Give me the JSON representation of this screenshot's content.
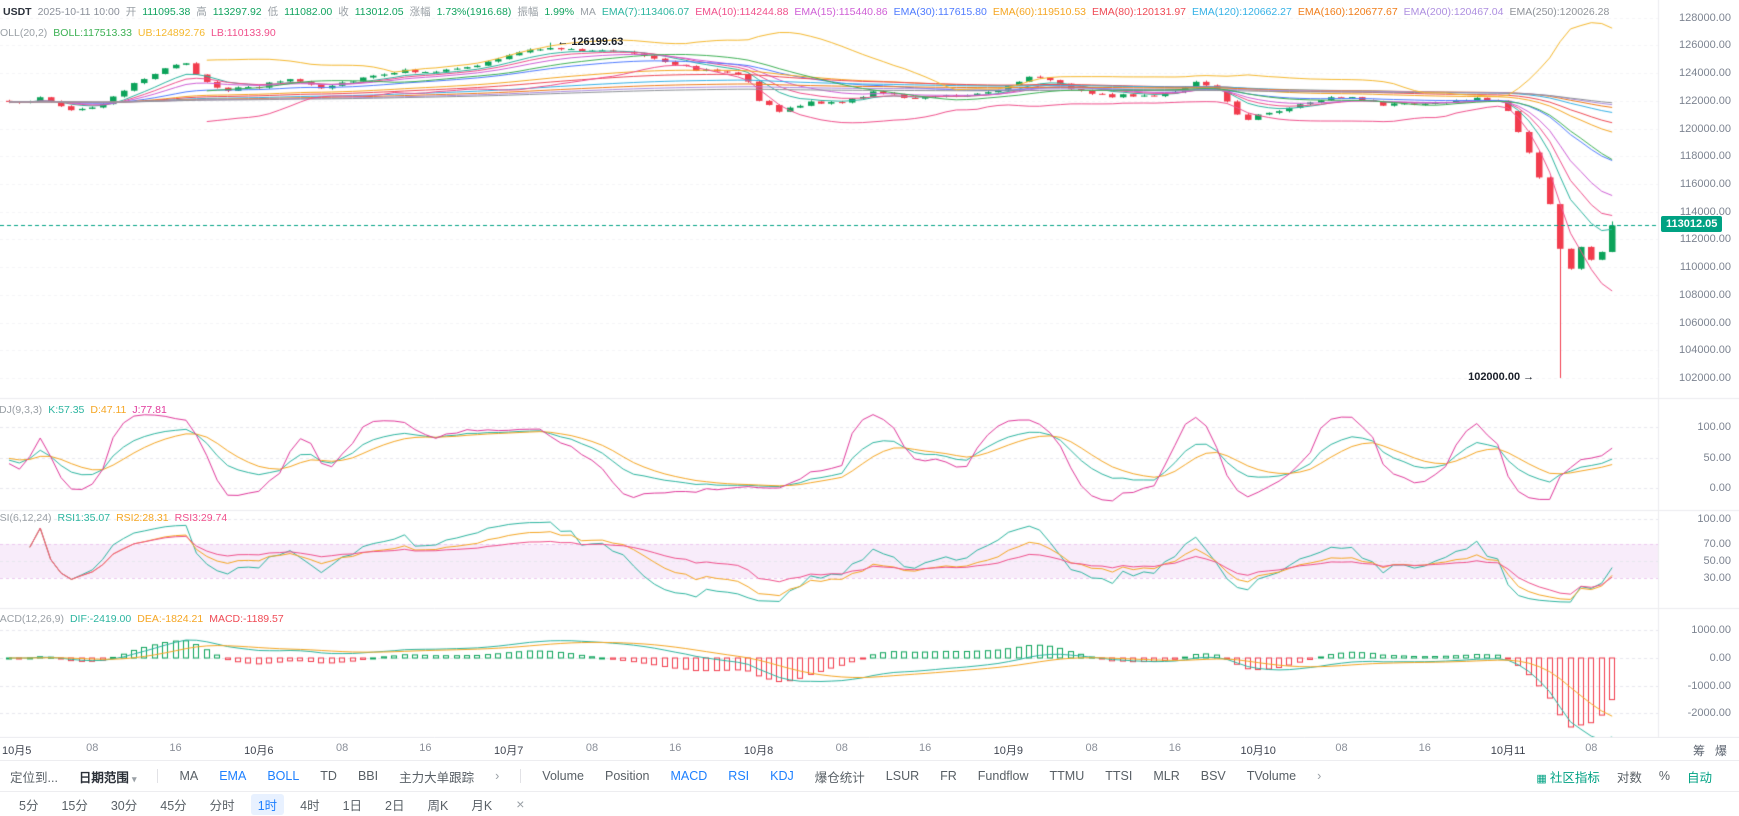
{
  "header": {
    "symbol": "USDT",
    "datetime": "2025-10-11 10:00",
    "label_color": "#9aa0a6",
    "value_color": "#11a35f",
    "fields": [
      {
        "label": "开",
        "value": "111095.38"
      },
      {
        "label": "高",
        "value": "113297.92"
      },
      {
        "label": "低",
        "value": "111082.00"
      },
      {
        "label": "收",
        "value": "113012.05"
      },
      {
        "label": "涨幅",
        "value": "1.73%(1916.68)"
      },
      {
        "label": "振幅",
        "value": "1.99%"
      }
    ]
  },
  "ma_legend": {
    "label": "MA",
    "items": [
      {
        "text": "EMA(7):113406.07",
        "color": "#2cb5a0"
      },
      {
        "text": "EMA(10):114244.88",
        "color": "#f0508c"
      },
      {
        "text": "EMA(15):115440.86",
        "color": "#cf5fd6"
      },
      {
        "text": "EMA(30):117615.80",
        "color": "#4f7bff"
      },
      {
        "text": "EMA(60):119510.53",
        "color": "#f5a623"
      },
      {
        "text": "EMA(80):120131.97",
        "color": "#ef4a55"
      },
      {
        "text": "EMA(120):120662.27",
        "color": "#35b1e6"
      },
      {
        "text": "EMA(160):120677.67",
        "color": "#f07d1a"
      },
      {
        "text": "EMA(200):120467.04",
        "color": "#ae8fe0"
      },
      {
        "text": "EMA(250):120026.28",
        "color": "#8f9399"
      }
    ]
  },
  "boll_legend": {
    "label": "BOLL(20,2)",
    "items": [
      {
        "text": "BOLL:117513.33",
        "color": "#3db154"
      },
      {
        "text": "UB:124892.76",
        "color": "#f5b82e"
      },
      {
        "text": "LB:110133.90",
        "color": "#f0508c"
      }
    ]
  },
  "kdj_legend": {
    "label": "KDJ(9,3,3)",
    "items": [
      {
        "text": "K:57.35",
        "color": "#2cb5a0"
      },
      {
        "text": "D:47.11",
        "color": "#f5a623"
      },
      {
        "text": "J:77.81",
        "color": "#e0389b"
      }
    ]
  },
  "rsi_legend": {
    "label": "RSI(6,12,24)",
    "items": [
      {
        "text": "RSI1:35.07",
        "color": "#2cb5a0"
      },
      {
        "text": "RSI2:28.31",
        "color": "#f5a623"
      },
      {
        "text": "RSI3:29.74",
        "color": "#f0508c"
      }
    ]
  },
  "macd_legend": {
    "label": "MACD(12,26,9)",
    "items": [
      {
        "text": "DIF:-2419.00",
        "color": "#2cb5a0"
      },
      {
        "text": "DEA:-1824.21",
        "color": "#f5a623"
      },
      {
        "text": "MACD:-1189.57",
        "color": "#ef4a55"
      }
    ]
  },
  "annotations": {
    "arrow_left": "←",
    "arrow_right": "→",
    "high": "126199.63",
    "low": "102000.00",
    "price_badge": "113012.05"
  },
  "axes": {
    "main_ticks": [
      "128000.00",
      "126000.00",
      "124000.00",
      "122000.00",
      "120000.00",
      "118000.00",
      "116000.00",
      "114000.00",
      "112000.00",
      "110000.00",
      "108000.00",
      "106000.00",
      "104000.00",
      "102000.00"
    ],
    "kdj_ticks": [
      "100.00",
      "50.00",
      "0.00"
    ],
    "rsi_ticks": [
      "100.00",
      "70.00",
      "50.00",
      "30.00"
    ],
    "macd_ticks": [
      "1000.00",
      "0.00",
      "-1000.00",
      "-2000.00"
    ],
    "x_ticks": [
      {
        "label": "10月5",
        "idx": 0,
        "major": true
      },
      {
        "label": "08",
        "idx": 8
      },
      {
        "label": "16",
        "idx": 16
      },
      {
        "label": "10月6",
        "idx": 24,
        "major": true
      },
      {
        "label": "08",
        "idx": 32
      },
      {
        "label": "16",
        "idx": 40
      },
      {
        "label": "10月7",
        "idx": 48,
        "major": true
      },
      {
        "label": "08",
        "idx": 56
      },
      {
        "label": "16",
        "idx": 64
      },
      {
        "label": "10月8",
        "idx": 72,
        "major": true
      },
      {
        "label": "08",
        "idx": 80
      },
      {
        "label": "16",
        "idx": 88
      },
      {
        "label": "10月9",
        "idx": 96,
        "major": true
      },
      {
        "label": "08",
        "idx": 104
      },
      {
        "label": "16",
        "idx": 112
      },
      {
        "label": "10月10",
        "idx": 120,
        "major": true
      },
      {
        "label": "08",
        "idx": 128
      },
      {
        "label": "16",
        "idx": 136
      },
      {
        "label": "10月11",
        "idx": 144,
        "major": true
      },
      {
        "label": "08",
        "idx": 152
      }
    ]
  },
  "side_toggles": [
    {
      "label": "筹"
    },
    {
      "label": "爆"
    }
  ],
  "toolbar": {
    "locate": "定位到...",
    "date_range": "日期范围",
    "chevron": "▾",
    "groups": [
      {
        "items": [
          {
            "label": "MA",
            "active": false
          },
          {
            "label": "EMA",
            "active": true
          },
          {
            "label": "BOLL",
            "active": true
          },
          {
            "label": "TD",
            "active": false
          },
          {
            "label": "BBI",
            "active": false
          },
          {
            "label": "主力大单跟踪",
            "active": false
          }
        ],
        "more": "›"
      },
      {
        "items": [
          {
            "label": "Volume",
            "active": false
          },
          {
            "label": "Position",
            "active": false
          },
          {
            "label": "MACD",
            "active": true
          },
          {
            "label": "RSI",
            "active": true
          },
          {
            "label": "KDJ",
            "active": true
          },
          {
            "label": "爆仓统计",
            "active": false
          },
          {
            "label": "LSUR",
            "active": false
          },
          {
            "label": "FR",
            "active": false
          },
          {
            "label": "Fundflow",
            "active": false
          },
          {
            "label": "TTMU",
            "active": false
          },
          {
            "label": "TTSI",
            "active": false
          },
          {
            "label": "MLR",
            "active": false
          },
          {
            "label": "BSV",
            "active": false
          },
          {
            "label": "TVolume",
            "active": false
          }
        ],
        "more": "›"
      }
    ],
    "right": [
      {
        "label": "社区指标",
        "icon": "▦",
        "accent": true
      },
      {
        "label": "对数",
        "accent": false
      },
      {
        "label": "%",
        "accent": false
      },
      {
        "label": "自动",
        "accent": true
      }
    ]
  },
  "timeframe_bar": {
    "items": [
      "5分",
      "15分",
      "30分",
      "45分",
      "分时",
      "1时",
      "4时",
      "1日",
      "2日",
      "周K",
      "月K"
    ],
    "active": "1时",
    "close": "×"
  },
  "chart_data": {
    "type": "candlestick",
    "symbol": "USDT",
    "interval": "1时",
    "candle_count": 155,
    "time_range": "2025-10-05 00:00 to 2025-10-11 10:00, 1-hour candles",
    "price_axis": {
      "min": 102000,
      "max": 128000,
      "tick_step": 2000
    },
    "last_candle": {
      "time": "2025-10-11 10:00",
      "open": 111095.38,
      "high": 113297.92,
      "low": 111082.0,
      "close": 113012.05,
      "change_pct": 1.73,
      "change_abs": 1916.68,
      "amplitude_pct": 1.99
    },
    "last_price": 113012.05,
    "peak_price": 126199.63,
    "peak_idx": 52,
    "wick_low": 102000.0,
    "wick_low_idx": 149,
    "close_anchors": [
      [
        0,
        121700
      ],
      [
        3,
        121900
      ],
      [
        6,
        121300
      ],
      [
        9,
        121900
      ],
      [
        12,
        123200
      ],
      [
        15,
        124400
      ],
      [
        17,
        124700
      ],
      [
        19,
        123600
      ],
      [
        21,
        123000
      ],
      [
        24,
        122900
      ],
      [
        27,
        123400
      ],
      [
        30,
        123000
      ],
      [
        33,
        123500
      ],
      [
        36,
        123800
      ],
      [
        40,
        124200
      ],
      [
        44,
        124600
      ],
      [
        48,
        125200
      ],
      [
        52,
        126000
      ],
      [
        55,
        125700
      ],
      [
        58,
        125450
      ],
      [
        62,
        124950
      ],
      [
        66,
        124350
      ],
      [
        70,
        123950
      ],
      [
        71,
        123400
      ],
      [
        72,
        122000
      ],
      [
        74,
        121300
      ],
      [
        77,
        122200
      ],
      [
        80,
        121900
      ],
      [
        83,
        122500
      ],
      [
        86,
        122200
      ],
      [
        89,
        122450
      ],
      [
        92,
        122250
      ],
      [
        95,
        122600
      ],
      [
        97,
        123400
      ],
      [
        98,
        123900
      ],
      [
        100,
        123600
      ],
      [
        103,
        122800
      ],
      [
        106,
        122300
      ],
      [
        109,
        122500
      ],
      [
        112,
        122900
      ],
      [
        114,
        123300
      ],
      [
        116,
        122500
      ],
      [
        118,
        120900
      ],
      [
        119,
        120400
      ],
      [
        120,
        120900
      ],
      [
        123,
        121600
      ],
      [
        126,
        122000
      ],
      [
        129,
        122200
      ],
      [
        132,
        121900
      ],
      [
        135,
        122050
      ],
      [
        138,
        121950
      ],
      [
        141,
        122150
      ],
      [
        143,
        122050
      ],
      [
        144,
        121300
      ],
      [
        145,
        119800
      ],
      [
        146,
        118300
      ],
      [
        147,
        116500
      ],
      [
        148,
        114500
      ],
      [
        149,
        111300
      ],
      [
        150,
        109800
      ],
      [
        151,
        111400
      ],
      [
        152,
        110500
      ],
      [
        153,
        111095.38
      ],
      [
        154,
        113012.05
      ]
    ],
    "ema_periods": [
      {
        "p": 7,
        "value": 113406.07,
        "color": "#2cb5a0"
      },
      {
        "p": 10,
        "value": 114244.88,
        "color": "#f0508c"
      },
      {
        "p": 15,
        "value": 115440.86,
        "color": "#cf5fd6"
      },
      {
        "p": 30,
        "value": 117615.8,
        "color": "#4f7bff"
      },
      {
        "p": 60,
        "value": 119510.53,
        "color": "#f5a623"
      },
      {
        "p": 80,
        "value": 120131.97,
        "color": "#ef4a55"
      },
      {
        "p": 120,
        "value": 120662.27,
        "color": "#35b1e6"
      },
      {
        "p": 160,
        "value": 120677.67,
        "color": "#f07d1a"
      },
      {
        "p": 200,
        "value": 120467.04,
        "color": "#ae8fe0"
      },
      {
        "p": 250,
        "value": 120026.28,
        "color": "#8f9399"
      }
    ],
    "boll": {
      "period": 20,
      "mult": 2,
      "mid": 117513.33,
      "ub": 124892.76,
      "lb": 110133.9,
      "mid_color": "#3db154",
      "ub_color": "#f5b82e",
      "lb_color": "#f0508c"
    },
    "kdj": {
      "params": [
        9,
        3,
        3
      ],
      "k": 57.35,
      "d": 47.11,
      "j": 77.81,
      "colors": [
        "#2cb5a0",
        "#f5a623",
        "#e0389b"
      ],
      "ticks": [
        100,
        50,
        0
      ]
    },
    "rsi": {
      "params": [
        6,
        12,
        24
      ],
      "values": [
        35.07,
        28.31,
        29.74
      ],
      "colors": [
        "#2cb5a0",
        "#f5a623",
        "#f0508c"
      ],
      "band": [
        30,
        70
      ],
      "ticks": [
        100,
        70,
        50,
        30
      ]
    },
    "macd": {
      "params": [
        12,
        26,
        9
      ],
      "dif": -2419.0,
      "dea": -1824.21,
      "macd": -1189.57,
      "dif_color": "#2cb5a0",
      "dea_color": "#f5a623",
      "ticks": [
        1000,
        0,
        -1000,
        -2000
      ]
    },
    "colors": {
      "up": "#0ca35a",
      "down": "#f23c4d",
      "last_price": "#00a283",
      "grid": "#ececf0"
    }
  }
}
